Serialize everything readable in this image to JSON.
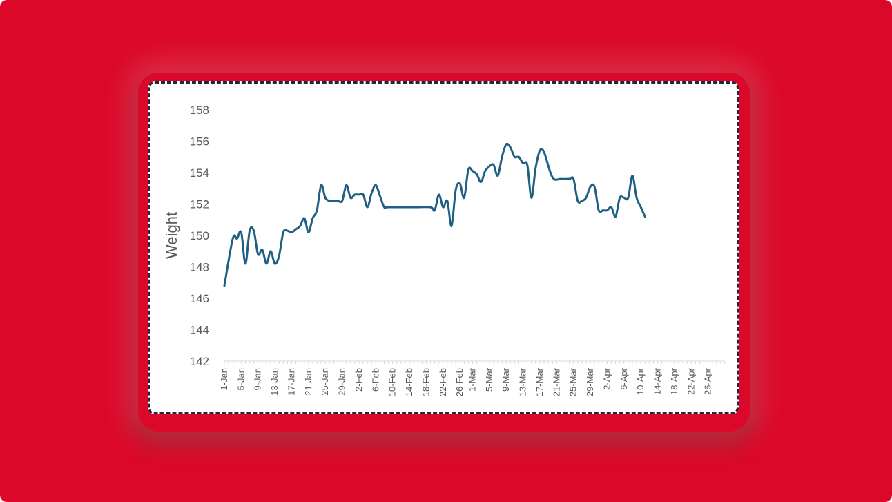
{
  "chart_data": {
    "type": "line",
    "title": "",
    "xlabel": "",
    "ylabel": "Weight",
    "ylim": [
      142,
      158
    ],
    "yticks": [
      142,
      144,
      146,
      148,
      150,
      152,
      154,
      156,
      158
    ],
    "xlim": [
      "1-Jan",
      "30-Apr"
    ],
    "xtick_labels": [
      "1-Jan",
      "5-Jan",
      "9-Jan",
      "13-Jan",
      "17-Jan",
      "21-Jan",
      "25-Jan",
      "29-Jan",
      "2-Feb",
      "6-Feb",
      "10-Feb",
      "14-Feb",
      "18-Feb",
      "22-Feb",
      "26-Feb",
      "1-Mar",
      "5-Mar",
      "9-Mar",
      "13-Mar",
      "17-Mar",
      "21-Mar",
      "25-Mar",
      "29-Mar",
      "2-Apr",
      "6-Apr",
      "10-Apr",
      "14-Apr",
      "18-Apr",
      "22-Apr",
      "26-Apr"
    ],
    "grid": false,
    "legend": "none",
    "line_color": "#1f5f82",
    "series": [
      {
        "name": "",
        "x": [
          "1-Jan",
          "3-Jan",
          "4-Jan",
          "5-Jan",
          "6-Jan",
          "7-Jan",
          "8-Jan",
          "9-Jan",
          "10-Jan",
          "11-Jan",
          "12-Jan",
          "13-Jan",
          "14-Jan",
          "15-Jan",
          "16-Jan",
          "17-Jan",
          "18-Jan",
          "19-Jan",
          "20-Jan",
          "21-Jan",
          "22-Jan",
          "23-Jan",
          "24-Jan",
          "25-Jan",
          "26-Jan",
          "27-Jan",
          "28-Jan",
          "29-Jan",
          "30-Jan",
          "31-Jan",
          "1-Feb",
          "2-Feb",
          "3-Feb",
          "4-Feb",
          "5-Feb",
          "6-Feb",
          "7-Feb",
          "8-Feb",
          "9-Feb",
          "15-Feb",
          "19-Feb",
          "20-Feb",
          "21-Feb",
          "22-Feb",
          "23-Feb",
          "24-Feb",
          "25-Feb",
          "26-Feb",
          "27-Feb",
          "28-Feb",
          "1-Mar",
          "2-Mar",
          "3-Mar",
          "4-Mar",
          "5-Mar",
          "6-Mar",
          "7-Mar",
          "8-Mar",
          "9-Mar",
          "10-Mar",
          "11-Mar",
          "12-Mar",
          "13-Mar",
          "14-Mar",
          "15-Mar",
          "16-Mar",
          "17-Mar",
          "18-Mar",
          "20-Mar",
          "22-Mar",
          "24-Mar",
          "25-Mar",
          "26-Mar",
          "27-Mar",
          "28-Mar",
          "29-Mar",
          "30-Mar",
          "31-Mar",
          "1-Apr",
          "2-Apr",
          "3-Apr",
          "4-Apr",
          "5-Apr",
          "6-Apr",
          "7-Apr",
          "8-Apr",
          "9-Apr",
          "10-Apr",
          "11-Apr"
        ],
        "y": [
          146.8,
          149.8,
          149.8,
          150.2,
          148.2,
          150.3,
          150.3,
          148.8,
          149.1,
          148.2,
          149.0,
          148.2,
          148.7,
          150.2,
          150.3,
          150.2,
          150.4,
          150.6,
          151.1,
          150.2,
          151.1,
          151.6,
          153.2,
          152.4,
          152.2,
          152.2,
          152.2,
          152.2,
          153.2,
          152.4,
          152.6,
          152.6,
          152.6,
          151.8,
          152.7,
          153.2,
          152.5,
          151.8,
          151.8,
          151.8,
          151.8,
          151.6,
          152.6,
          151.8,
          152.2,
          150.6,
          152.9,
          153.3,
          152.4,
          154.2,
          154.1,
          153.9,
          153.4,
          154.1,
          154.4,
          154.5,
          153.8,
          155.0,
          155.8,
          155.6,
          155.0,
          155.0,
          154.6,
          154.5,
          152.4,
          154.3,
          155.4,
          155.3,
          153.7,
          153.6,
          153.6,
          153.6,
          152.2,
          152.2,
          152.4,
          153.1,
          153.1,
          151.6,
          151.6,
          151.6,
          151.8,
          151.2,
          152.4,
          152.4,
          152.4,
          153.8,
          152.4,
          151.8,
          151.2
        ]
      }
    ]
  }
}
